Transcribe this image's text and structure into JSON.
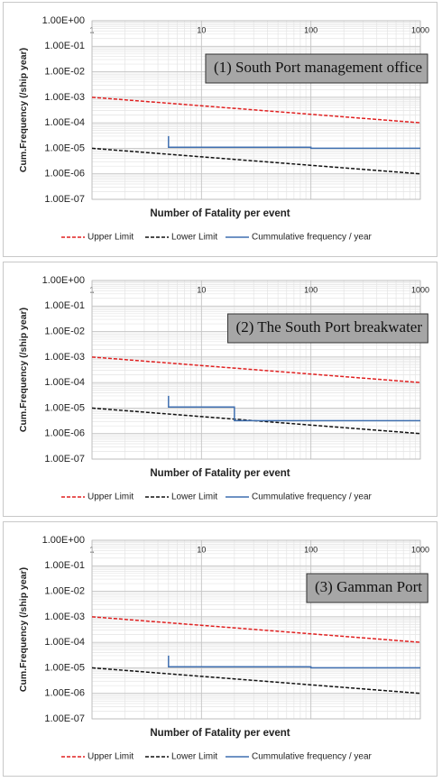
{
  "chart_data": [
    {
      "type": "line",
      "log_x": true,
      "log_y": true,
      "grid": true,
      "xlabel": "Number of Fatality per event",
      "ylabel": "Cum.Frequency (/ship year)",
      "annotation": "(1) South Port management office",
      "xlim": [
        1,
        1000
      ],
      "xticks": [
        1,
        10,
        100,
        1000
      ],
      "ylim": [
        1e-07,
        1
      ],
      "yticks": [
        {
          "value": 1,
          "label": "1.00E+00"
        },
        {
          "value": 0.1,
          "label": "1.00E-01"
        },
        {
          "value": 0.01,
          "label": "1.00E-02"
        },
        {
          "value": 0.001,
          "label": "1.00E-03"
        },
        {
          "value": 0.0001,
          "label": "1.00E-04"
        },
        {
          "value": 1e-05,
          "label": "1.00E-05"
        },
        {
          "value": 1e-06,
          "label": "1.00E-06"
        },
        {
          "value": 1e-07,
          "label": "1.00E-07"
        }
      ],
      "series": [
        {
          "name": "Upper Limit",
          "color": "#e02020",
          "dashed": true,
          "x": [
            1,
            1000
          ],
          "values": [
            0.001,
            0.0001
          ]
        },
        {
          "name": "Lower Limit",
          "color": "#111111",
          "dashed": true,
          "x": [
            1,
            1000
          ],
          "values": [
            1e-05,
            1e-06
          ]
        },
        {
          "name": "Cummulative frequency / year",
          "color": "#3f6fb0",
          "dashed": false,
          "x": [
            5,
            5,
            100,
            100,
            1000
          ],
          "values": [
            3e-05,
            1.1e-05,
            1.1e-05,
            1e-05,
            1e-05
          ]
        }
      ]
    },
    {
      "type": "line",
      "log_x": true,
      "log_y": true,
      "grid": true,
      "xlabel": "Number of Fatality per event",
      "ylabel": "Cum.Frequency (/ship year)",
      "annotation": "(2) The South Port breakwater",
      "xlim": [
        1,
        1000
      ],
      "xticks": [
        1,
        10,
        100,
        1000
      ],
      "ylim": [
        1e-07,
        1
      ],
      "yticks": [
        {
          "value": 1,
          "label": "1.00E+00"
        },
        {
          "value": 0.1,
          "label": "1.00E-01"
        },
        {
          "value": 0.01,
          "label": "1.00E-02"
        },
        {
          "value": 0.001,
          "label": "1.00E-03"
        },
        {
          "value": 0.0001,
          "label": "1.00E-04"
        },
        {
          "value": 1e-05,
          "label": "1.00E-05"
        },
        {
          "value": 1e-06,
          "label": "1.00E-06"
        },
        {
          "value": 1e-07,
          "label": "1.00E-07"
        }
      ],
      "series": [
        {
          "name": "Upper Limit",
          "color": "#e02020",
          "dashed": true,
          "x": [
            1,
            1000
          ],
          "values": [
            0.001,
            0.0001
          ]
        },
        {
          "name": "Lower Limit",
          "color": "#111111",
          "dashed": true,
          "x": [
            1,
            1000
          ],
          "values": [
            1e-05,
            1e-06
          ]
        },
        {
          "name": "Cummulative frequency / year",
          "color": "#3f6fb0",
          "dashed": false,
          "x": [
            5,
            5,
            20,
            20,
            1000
          ],
          "values": [
            3e-05,
            1.1e-05,
            1.1e-05,
            3.2e-06,
            3.2e-06
          ]
        }
      ]
    },
    {
      "type": "line",
      "log_x": true,
      "log_y": true,
      "grid": true,
      "xlabel": "Number of Fatality per event",
      "ylabel": "Cum.Frequency (/ship year)",
      "annotation": "(3) Gamman Port",
      "xlim": [
        1,
        1000
      ],
      "xticks": [
        1,
        10,
        100,
        1000
      ],
      "ylim": [
        1e-07,
        1
      ],
      "yticks": [
        {
          "value": 1,
          "label": "1.00E+00"
        },
        {
          "value": 0.1,
          "label": "1.00E-01"
        },
        {
          "value": 0.01,
          "label": "1.00E-02"
        },
        {
          "value": 0.001,
          "label": "1.00E-03"
        },
        {
          "value": 0.0001,
          "label": "1.00E-04"
        },
        {
          "value": 1e-05,
          "label": "1.00E-05"
        },
        {
          "value": 1e-06,
          "label": "1.00E-06"
        },
        {
          "value": 1e-07,
          "label": "1.00E-07"
        }
      ],
      "series": [
        {
          "name": "Upper Limit",
          "color": "#e02020",
          "dashed": true,
          "x": [
            1,
            1000
          ],
          "values": [
            0.001,
            0.0001
          ]
        },
        {
          "name": "Lower Limit",
          "color": "#111111",
          "dashed": true,
          "x": [
            1,
            1000
          ],
          "values": [
            1e-05,
            1e-06
          ]
        },
        {
          "name": "Cummulative frequency / year",
          "color": "#3f6fb0",
          "dashed": false,
          "x": [
            5,
            5,
            100,
            100,
            1000
          ],
          "values": [
            3e-05,
            1.1e-05,
            1.1e-05,
            1e-05,
            1e-05
          ]
        }
      ]
    }
  ]
}
